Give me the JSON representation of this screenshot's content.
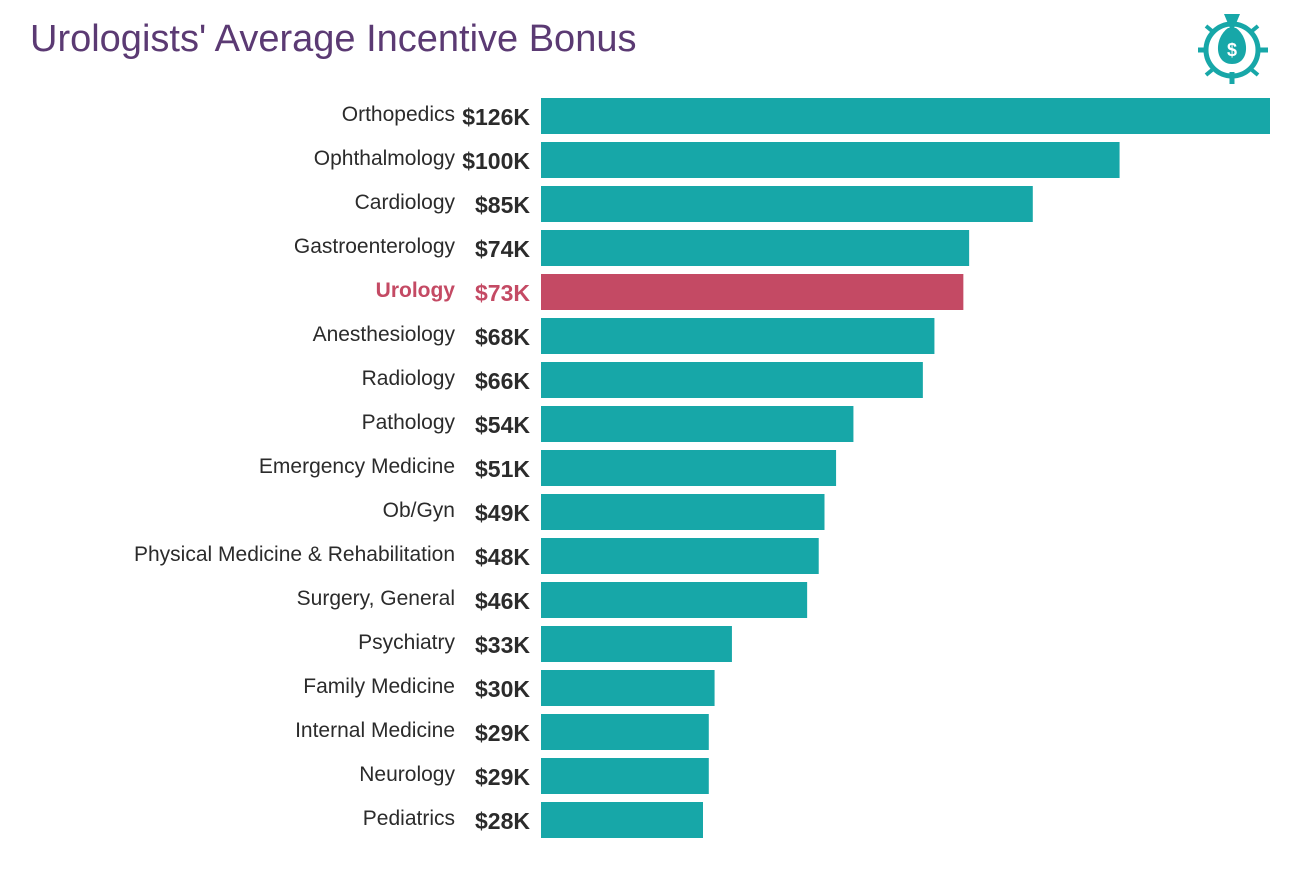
{
  "chart_data": {
    "type": "bar",
    "orientation": "horizontal",
    "title": "Urologists' Average Incentive Bonus",
    "categories": [
      "Orthopedics",
      "Ophthalmology",
      "Cardiology",
      "Gastroenterology",
      "Urology",
      "Anesthesiology",
      "Radiology",
      "Pathology",
      "Emergency Medicine",
      "Ob/Gyn",
      "Physical Medicine & Rehabilitation",
      "Surgery, General",
      "Psychiatry",
      "Family Medicine",
      "Internal Medicine",
      "Neurology",
      "Pediatrics"
    ],
    "values": [
      126,
      100,
      85,
      74,
      73,
      68,
      66,
      54,
      51,
      49,
      48,
      46,
      33,
      30,
      29,
      29,
      28
    ],
    "value_labels": [
      "$126K",
      "$100K",
      "$85K",
      "$74K",
      "$73K",
      "$68K",
      "$66K",
      "$54K",
      "$51K",
      "$49K",
      "$48K",
      "$46K",
      "$33K",
      "$30K",
      "$29K",
      "$29K",
      "$28K"
    ],
    "unit": "thousand USD",
    "xlim": [
      0,
      126
    ],
    "grid": false,
    "legend": "none",
    "highlight": "Urology",
    "colors": {
      "bar": "#17a7a8",
      "highlight": "#c44a64",
      "title": "#5b3a73",
      "text": "#2b2b2b"
    }
  },
  "icon": "money-bag-target-icon"
}
